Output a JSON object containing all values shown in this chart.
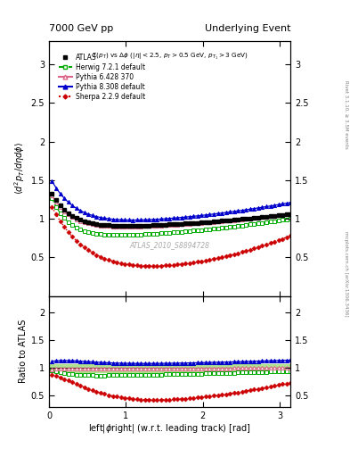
{
  "title_left": "7000 GeV pp",
  "title_right": "Underlying Event",
  "annotation": "$\\Sigma(p_T)$ vs $\\Delta\\phi$ ($|\\eta| < 2.5$, $p_T > 0.5$ GeV, $p_{T_1} > 3$ GeV)",
  "watermark": "ATLAS_2010_S8894728",
  "ylabel_main": "$\\langle d^2 p_T/d\\eta d\\phi \\rangle$",
  "ylabel_ratio": "Ratio to ATLAS",
  "xlabel": "left$|\\phi$right$|$ (w.r.t. leading track) [rad]",
  "right_label_top": "Rivet 3.1.10, ≥ 3.5M events",
  "right_label_bottom": "mcplots.cern.ch [arXiv:1306.3436]",
  "xlim": [
    0,
    3.14159
  ],
  "ylim_main": [
    0.0,
    3.3
  ],
  "ylim_ratio": [
    0.3,
    2.3
  ],
  "yticks_main": [
    0.5,
    1.0,
    1.5,
    2.0,
    2.5,
    3.0
  ],
  "yticks_ratio": [
    0.5,
    1.0,
    1.5,
    2.0
  ],
  "xticks": [
    0,
    1,
    2,
    3
  ],
  "series_ATLAS_color": "#000000",
  "series_Herwig_color": "#00aa00",
  "series_Pythia6_color": "#dd6688",
  "series_Pythia8_color": "#0000cc",
  "series_Sherpa_color": "#cc0000",
  "band_color": "#aadd88",
  "band_lo": 0.93,
  "band_hi": 1.07
}
